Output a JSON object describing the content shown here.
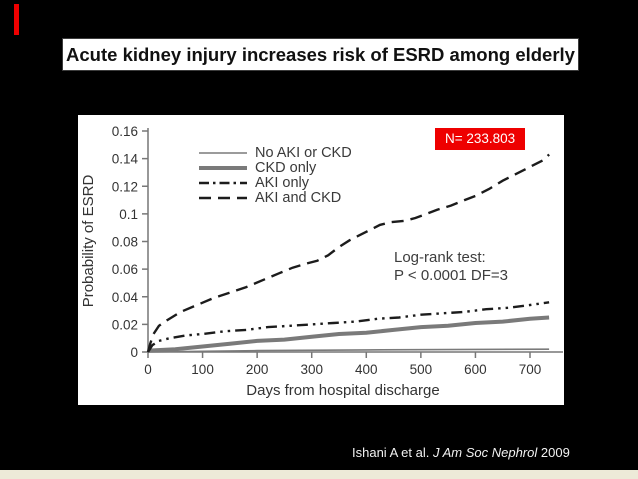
{
  "slide": {
    "title": "Acute kidney injury increases risk of ESRD among elderly",
    "citation": {
      "authors": "Ishani A  et al.",
      "journal": "J Am Soc Nephrol",
      "year": "2009"
    },
    "colors": {
      "background": "#000000",
      "accent_red": "#ee0000",
      "panel": "#ffffff",
      "bottom_band": "#edead8",
      "gray_series": "#7a7a7a",
      "black_series": "#1c1c1c"
    }
  },
  "annotations": {
    "n_label": "N= 233.803",
    "stat_line1": "Log-rank test:",
    "stat_line2": "P < 0.0001 DF=3"
  },
  "chart_data": {
    "type": "line",
    "title": "",
    "xlabel": "Days from hospital discharge",
    "ylabel": "Probability of ESRD",
    "xlim": [
      0,
      740
    ],
    "ylim": [
      0,
      0.16
    ],
    "xticks": [
      0,
      100,
      200,
      300,
      400,
      500,
      600,
      700
    ],
    "yticks": [
      0,
      0.02,
      0.04,
      0.06,
      0.08,
      0.1,
      0.12,
      0.14,
      0.16
    ],
    "ytick_labels": [
      "0",
      "0.02",
      "0.04",
      "0.06",
      "0.08",
      "0.1",
      "0.12",
      "0.14",
      "0.16"
    ],
    "grid": false,
    "legend_position": "upper-left-inside",
    "series": [
      {
        "name": "No AKI or CKD",
        "style": "solid-thin",
        "color": "#7a7a7a",
        "points": [
          [
            0,
            0
          ],
          [
            100,
            0.0005
          ],
          [
            200,
            0.001
          ],
          [
            400,
            0.0015
          ],
          [
            735,
            0.002
          ]
        ]
      },
      {
        "name": "CKD only",
        "style": "solid-thick",
        "color": "#7a7a7a",
        "points": [
          [
            0,
            0.001
          ],
          [
            50,
            0.002
          ],
          [
            100,
            0.004
          ],
          [
            150,
            0.006
          ],
          [
            200,
            0.008
          ],
          [
            250,
            0.009
          ],
          [
            300,
            0.011
          ],
          [
            350,
            0.013
          ],
          [
            400,
            0.014
          ],
          [
            450,
            0.016
          ],
          [
            500,
            0.018
          ],
          [
            550,
            0.019
          ],
          [
            600,
            0.021
          ],
          [
            650,
            0.022
          ],
          [
            700,
            0.024
          ],
          [
            735,
            0.025
          ]
        ]
      },
      {
        "name": "AKI only",
        "style": "dash-dot",
        "color": "#1c1c1c",
        "points": [
          [
            0,
            0
          ],
          [
            8,
            0.005
          ],
          [
            20,
            0.008
          ],
          [
            40,
            0.01
          ],
          [
            70,
            0.012
          ],
          [
            100,
            0.013
          ],
          [
            140,
            0.015
          ],
          [
            180,
            0.016
          ],
          [
            220,
            0.018
          ],
          [
            260,
            0.019
          ],
          [
            300,
            0.02
          ],
          [
            340,
            0.021
          ],
          [
            380,
            0.022
          ],
          [
            420,
            0.024
          ],
          [
            460,
            0.025
          ],
          [
            500,
            0.027
          ],
          [
            540,
            0.028
          ],
          [
            580,
            0.029
          ],
          [
            620,
            0.031
          ],
          [
            660,
            0.032
          ],
          [
            700,
            0.034
          ],
          [
            735,
            0.036
          ]
        ]
      },
      {
        "name": "AKI and CKD",
        "style": "dashed",
        "color": "#1c1c1c",
        "points": [
          [
            0,
            0
          ],
          [
            4,
            0.006
          ],
          [
            10,
            0.013
          ],
          [
            20,
            0.019
          ],
          [
            35,
            0.023
          ],
          [
            60,
            0.029
          ],
          [
            90,
            0.034
          ],
          [
            120,
            0.039
          ],
          [
            150,
            0.043
          ],
          [
            180,
            0.047
          ],
          [
            210,
            0.052
          ],
          [
            240,
            0.057
          ],
          [
            265,
            0.061
          ],
          [
            290,
            0.064
          ],
          [
            310,
            0.066
          ],
          [
            330,
            0.07
          ],
          [
            350,
            0.076
          ],
          [
            370,
            0.081
          ],
          [
            390,
            0.085
          ],
          [
            410,
            0.089
          ],
          [
            425,
            0.092
          ],
          [
            445,
            0.094
          ],
          [
            470,
            0.095
          ],
          [
            490,
            0.097
          ],
          [
            510,
            0.1
          ],
          [
            530,
            0.103
          ],
          [
            555,
            0.106
          ],
          [
            580,
            0.11
          ],
          [
            600,
            0.113
          ],
          [
            625,
            0.118
          ],
          [
            650,
            0.124
          ],
          [
            670,
            0.128
          ],
          [
            690,
            0.132
          ],
          [
            710,
            0.136
          ],
          [
            725,
            0.139
          ],
          [
            735,
            0.143
          ]
        ]
      }
    ]
  }
}
